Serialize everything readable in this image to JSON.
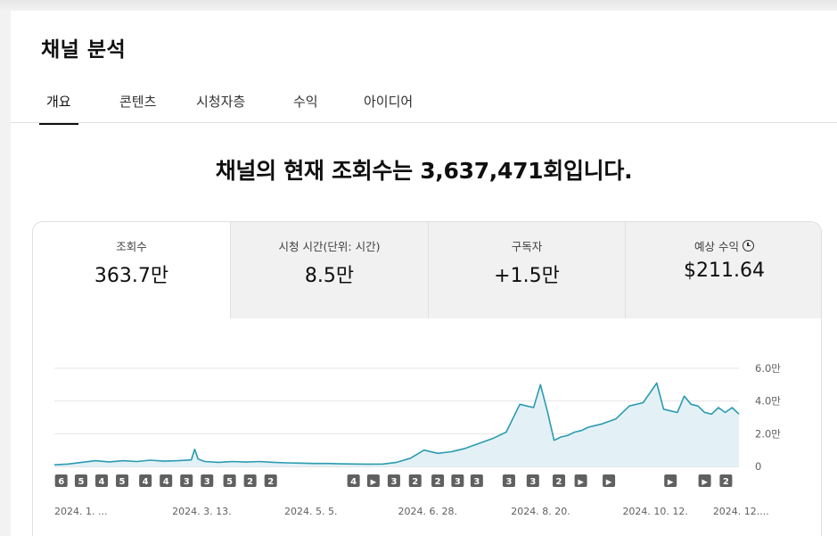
{
  "page": {
    "title": "채널 분석"
  },
  "tabs": [
    {
      "label": "개요",
      "active": true
    },
    {
      "label": "콘텐츠",
      "active": false
    },
    {
      "label": "시청자층",
      "active": false
    },
    {
      "label": "수익",
      "active": false
    },
    {
      "label": "아이디어",
      "active": false
    }
  ],
  "headline": "채널의 현재 조회수는 3,637,471회입니다.",
  "metrics": [
    {
      "label": "조회수",
      "value": "363.7만",
      "selected": true
    },
    {
      "label": "시청 시간(단위: 시간)",
      "value": "8.5만",
      "selected": false
    },
    {
      "label": "구독자",
      "value": "+1.5만",
      "selected": false
    },
    {
      "label": "예상 수익",
      "value": "$211.64",
      "selected": false,
      "icon": "clock-icon"
    }
  ],
  "colors": {
    "accent": "#2b9bb0",
    "fill": "#e3f1f6",
    "grid": "#e5e5e5",
    "marker": "#606060"
  },
  "chart_data": {
    "type": "area",
    "y_tick_labels": [
      "6.0만",
      "4.0만",
      "2.0만",
      "0"
    ],
    "y_ticks": [
      60000,
      40000,
      20000,
      0
    ],
    "ylim": [
      0,
      60000
    ],
    "x_tick_labels": [
      "2024. 1. ...",
      "2024. 3. 13.",
      "2024. 5. 5.",
      "2024. 6. 28.",
      "2024. 8. 20.",
      "2024. 10. 12.",
      "2024. 12...."
    ],
    "x_tick_positions": [
      0.0,
      0.172,
      0.336,
      0.502,
      0.667,
      0.83,
      0.962
    ],
    "x": [
      0.0,
      0.02,
      0.04,
      0.06,
      0.08,
      0.1,
      0.12,
      0.14,
      0.16,
      0.18,
      0.2,
      0.205,
      0.21,
      0.22,
      0.24,
      0.26,
      0.28,
      0.3,
      0.32,
      0.34,
      0.36,
      0.38,
      0.4,
      0.42,
      0.44,
      0.46,
      0.48,
      0.5,
      0.52,
      0.54,
      0.56,
      0.58,
      0.6,
      0.62,
      0.64,
      0.66,
      0.68,
      0.69,
      0.7,
      0.71,
      0.72,
      0.73,
      0.74,
      0.75,
      0.76,
      0.77,
      0.78,
      0.79,
      0.8,
      0.82,
      0.84,
      0.86,
      0.88,
      0.89,
      0.9,
      0.91,
      0.92,
      0.93,
      0.94,
      0.95,
      0.96,
      0.97,
      0.98,
      0.99,
      1.0
    ],
    "values": [
      1000,
      1500,
      2500,
      3500,
      2800,
      3500,
      3000,
      3800,
      3200,
      3500,
      4000,
      10500,
      4500,
      3000,
      2500,
      3000,
      2700,
      3000,
      2500,
      2200,
      2000,
      1800,
      1800,
      1600,
      1500,
      1400,
      1500,
      2500,
      5000,
      10000,
      8000,
      9000,
      11000,
      14000,
      17000,
      21000,
      38000,
      37000,
      36000,
      50000,
      34000,
      16000,
      18000,
      19000,
      21000,
      22000,
      24000,
      25000,
      26000,
      29000,
      37000,
      39000,
      51000,
      35000,
      34000,
      33000,
      43000,
      38000,
      37000,
      33000,
      32000,
      36000,
      33000,
      36000,
      32000
    ],
    "markers": [
      "6",
      "5",
      "4",
      "5",
      "4",
      "4",
      "3",
      "3",
      "5",
      "2",
      "2",
      "4",
      "▶",
      "3",
      "2",
      "2",
      "3",
      "3",
      "3",
      "3",
      "2",
      "▶",
      "▶",
      "▶",
      "▶",
      "2"
    ],
    "marker_positions": [
      0.01,
      0.039,
      0.069,
      0.099,
      0.133,
      0.163,
      0.193,
      0.223,
      0.256,
      0.286,
      0.316,
      0.437,
      0.466,
      0.496,
      0.527,
      0.56,
      0.589,
      0.617,
      0.664,
      0.699,
      0.737,
      0.769,
      0.81,
      0.9,
      0.95,
      0.981
    ],
    "title": "",
    "xlabel": "",
    "ylabel": ""
  }
}
